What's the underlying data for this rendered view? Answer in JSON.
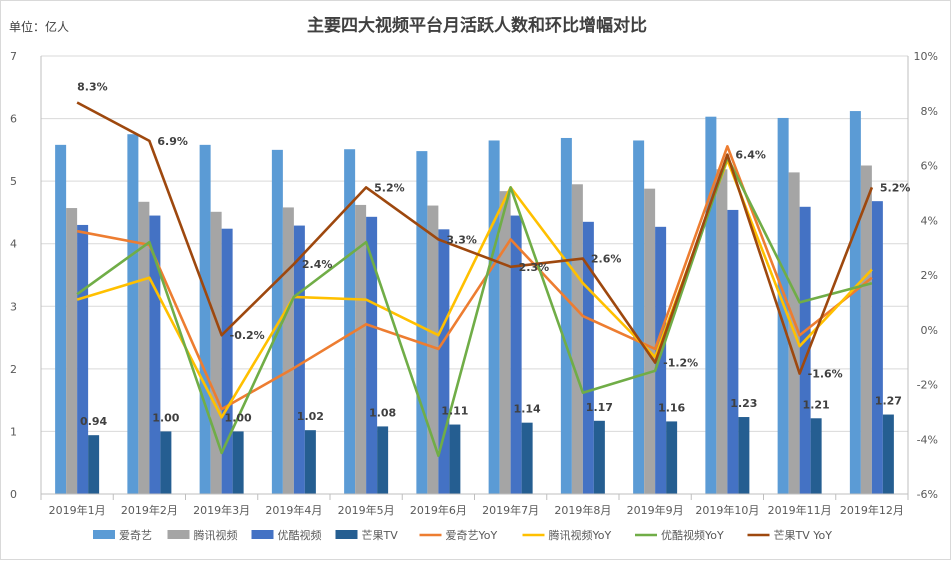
{
  "chart_data": {
    "type": "bar",
    "title": "主要四大视频平台月活跃人数和环比增幅对比",
    "unit_label": "单位：亿人",
    "categories": [
      "2019年1月",
      "2019年2月",
      "2019年3月",
      "2019年4月",
      "2019年5月",
      "2019年6月",
      "2019年7月",
      "2019年8月",
      "2019年9月",
      "2019年10月",
      "2019年11月",
      "2019年12月"
    ],
    "ylim": [
      0,
      7
    ],
    "y_ticks": [
      "0",
      "1",
      "2",
      "3",
      "4",
      "5",
      "6",
      "7"
    ],
    "y2lim": [
      -6,
      10
    ],
    "y2_ticks": [
      "-6%",
      "-4%",
      "-2%",
      "0%",
      "2%",
      "4%",
      "6%",
      "8%",
      "10%"
    ],
    "grid": true,
    "legend_position": "bottom",
    "bar_series": [
      {
        "name": "爱奇艺",
        "color": "#5b9bd5",
        "values": [
          5.58,
          5.75,
          5.58,
          5.5,
          5.51,
          5.48,
          5.65,
          5.69,
          5.65,
          6.03,
          6.01,
          6.12
        ]
      },
      {
        "name": "腾讯视频",
        "color": "#a5a5a5",
        "values": [
          4.57,
          4.67,
          4.51,
          4.58,
          4.62,
          4.61,
          4.84,
          4.95,
          4.88,
          5.19,
          5.14,
          5.25
        ]
      },
      {
        "name": "优酷视频",
        "color": "#4472c4",
        "values": [
          4.3,
          4.45,
          4.24,
          4.29,
          4.43,
          4.23,
          4.45,
          4.35,
          4.27,
          4.54,
          4.59,
          4.68
        ]
      },
      {
        "name": "芒果TV",
        "color": "#255e91",
        "values": [
          0.94,
          1.0,
          1.0,
          1.02,
          1.08,
          1.11,
          1.14,
          1.17,
          1.16,
          1.23,
          1.21,
          1.27
        ],
        "labels": [
          "0.94",
          "1.00",
          "1.00",
          "1.02",
          "1.08",
          "1.11",
          "1.14",
          "1.17",
          "1.16",
          "1.23",
          "1.21",
          "1.27"
        ]
      }
    ],
    "line_series": [
      {
        "name": "爱奇艺YoY",
        "color": "#ed7d31",
        "values": [
          3.6,
          3.1,
          -2.9,
          -1.4,
          0.2,
          -0.7,
          3.3,
          0.5,
          -0.7,
          6.7,
          -0.2,
          1.9
        ]
      },
      {
        "name": "腾讯视频YoY",
        "color": "#ffc000",
        "values": [
          1.1,
          1.9,
          -3.2,
          1.2,
          1.1,
          -0.2,
          5.2,
          1.7,
          -1.0,
          6.2,
          -0.6,
          2.2
        ]
      },
      {
        "name": "优酷视频YoY",
        "color": "#70ad47",
        "values": [
          1.3,
          3.2,
          -4.5,
          1.2,
          3.2,
          -4.6,
          5.2,
          -2.3,
          -1.5,
          6.3,
          1.0,
          1.7
        ]
      },
      {
        "name": "芒果TV YoY",
        "color": "#9e480e",
        "values": [
          8.3,
          6.9,
          -0.2,
          2.4,
          5.2,
          3.3,
          2.3,
          2.6,
          -1.2,
          6.4,
          -1.6,
          5.2
        ],
        "labels": [
          "8.3%",
          "6.9%",
          "-0.2%",
          "2.4%",
          "5.2%",
          "3.3%",
          "2.3%",
          "2.6%",
          "-1.2%",
          "6.4%",
          "-1.6%",
          "5.2%"
        ]
      }
    ]
  }
}
